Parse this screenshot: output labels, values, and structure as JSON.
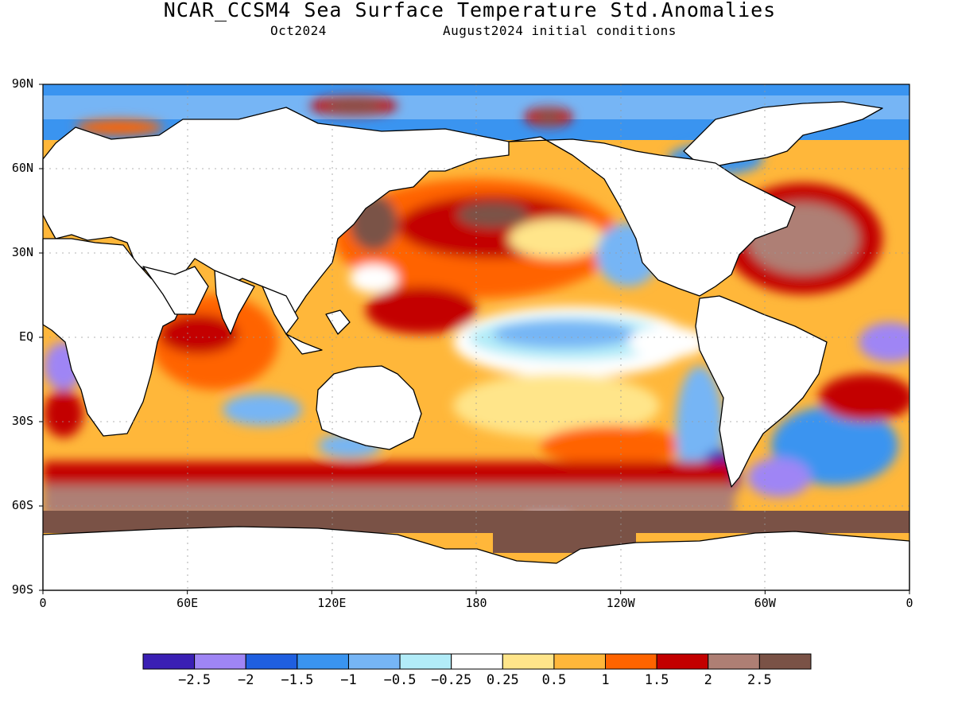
{
  "header": {
    "title": "NCAR_CCSM4 Sea Surface Temperature Std.Anomalies",
    "valid": "Oct2024",
    "init": "August2024 initial conditions"
  },
  "map": {
    "lon_range": [
      0,
      360
    ],
    "lat_range": [
      -90,
      90
    ],
    "y_ticks": [
      {
        "lat": 90,
        "label": "90N"
      },
      {
        "lat": 60,
        "label": "60N"
      },
      {
        "lat": 30,
        "label": "30N"
      },
      {
        "lat": 0,
        "label": "EQ"
      },
      {
        "lat": -30,
        "label": "30S"
      },
      {
        "lat": -60,
        "label": "60S"
      },
      {
        "lat": -90,
        "label": "90S"
      }
    ],
    "x_ticks": [
      {
        "lon": 0,
        "label": "0"
      },
      {
        "lon": 60,
        "label": "60E"
      },
      {
        "lon": 120,
        "label": "120E"
      },
      {
        "lon": 180,
        "label": "180"
      },
      {
        "lon": 240,
        "label": "120W"
      },
      {
        "lon": 300,
        "label": "60W"
      },
      {
        "lon": 360,
        "label": "0"
      }
    ],
    "grid": true,
    "land_color": "#ffffff"
  },
  "colorbar": {
    "colors": [
      "#3a1fb4",
      "#9f85f5",
      "#1f5fe0",
      "#3a94f0",
      "#76b5f5",
      "#b2ecf8",
      "#ffffff",
      "#ffe58a",
      "#ffb73a",
      "#ff6400",
      "#c30000",
      "#ae7f74",
      "#7a5246"
    ],
    "labels": [
      "-2.5",
      "-2",
      "-1.5",
      "-1",
      "-0.5",
      "-0.25",
      "0.25",
      "0.5",
      "1",
      "1.5",
      "2",
      "2.5"
    ]
  }
}
